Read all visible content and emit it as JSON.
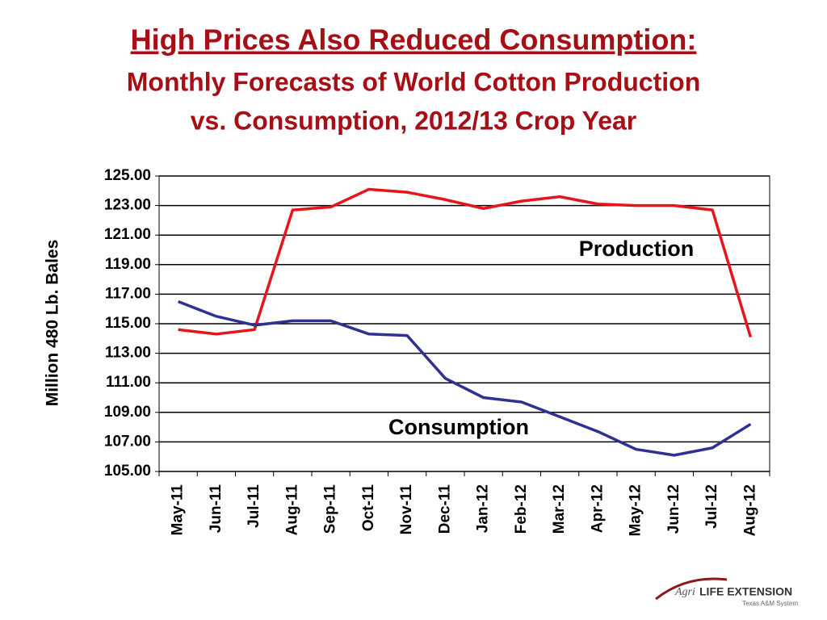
{
  "chart_data": {
    "type": "line",
    "title": "High Prices Also Reduced Consumption:",
    "subtitle": [
      "Monthly Forecasts of World Cotton Production",
      "vs. Consumption, 2012/13 Crop Year"
    ],
    "y_label": "Million 480 Lb. Bales",
    "categories": [
      "May-11",
      "Jun-11",
      "Jul-11",
      "Aug-11",
      "Sep-11",
      "Oct-11",
      "Nov-11",
      "Dec-11",
      "Jan-12",
      "Feb-12",
      "Mar-12",
      "Apr-12",
      "May-12",
      "Jun-12",
      "Jul-12",
      "Aug-12"
    ],
    "series": [
      {
        "name": "Production",
        "color": "#e8141b",
        "values": [
          114.6,
          114.3,
          114.6,
          122.7,
          122.9,
          124.1,
          123.9,
          123.4,
          122.8,
          123.3,
          123.6,
          123.1,
          123.0,
          123.0,
          122.7,
          114.1
        ]
      },
      {
        "name": "Consumption",
        "color": "#2e3192",
        "values": [
          116.5,
          115.5,
          114.9,
          115.2,
          115.2,
          114.3,
          114.2,
          111.3,
          110.0,
          109.7,
          108.7,
          107.7,
          106.5,
          106.1,
          106.6,
          108.2
        ]
      }
    ],
    "ylim": [
      105,
      125
    ],
    "yticks": [
      {
        "value": 105,
        "label": "105.00"
      },
      {
        "value": 107,
        "label": "107.00"
      },
      {
        "value": 109,
        "label": "109.00"
      },
      {
        "value": 111,
        "label": "111.00"
      },
      {
        "value": 113,
        "label": "113.00"
      },
      {
        "value": 115,
        "label": "115.00"
      },
      {
        "value": 117,
        "label": "117.00"
      },
      {
        "value": 119,
        "label": "119.00"
      },
      {
        "value": 121,
        "label": "121.00"
      },
      {
        "value": 123,
        "label": "123.00"
      },
      {
        "value": 125,
        "label": "125.00"
      }
    ],
    "grid": true
  },
  "logo": {
    "brand": "Agri",
    "name": "LIFE EXTENSION",
    "subtext": "Texas A&M System"
  }
}
